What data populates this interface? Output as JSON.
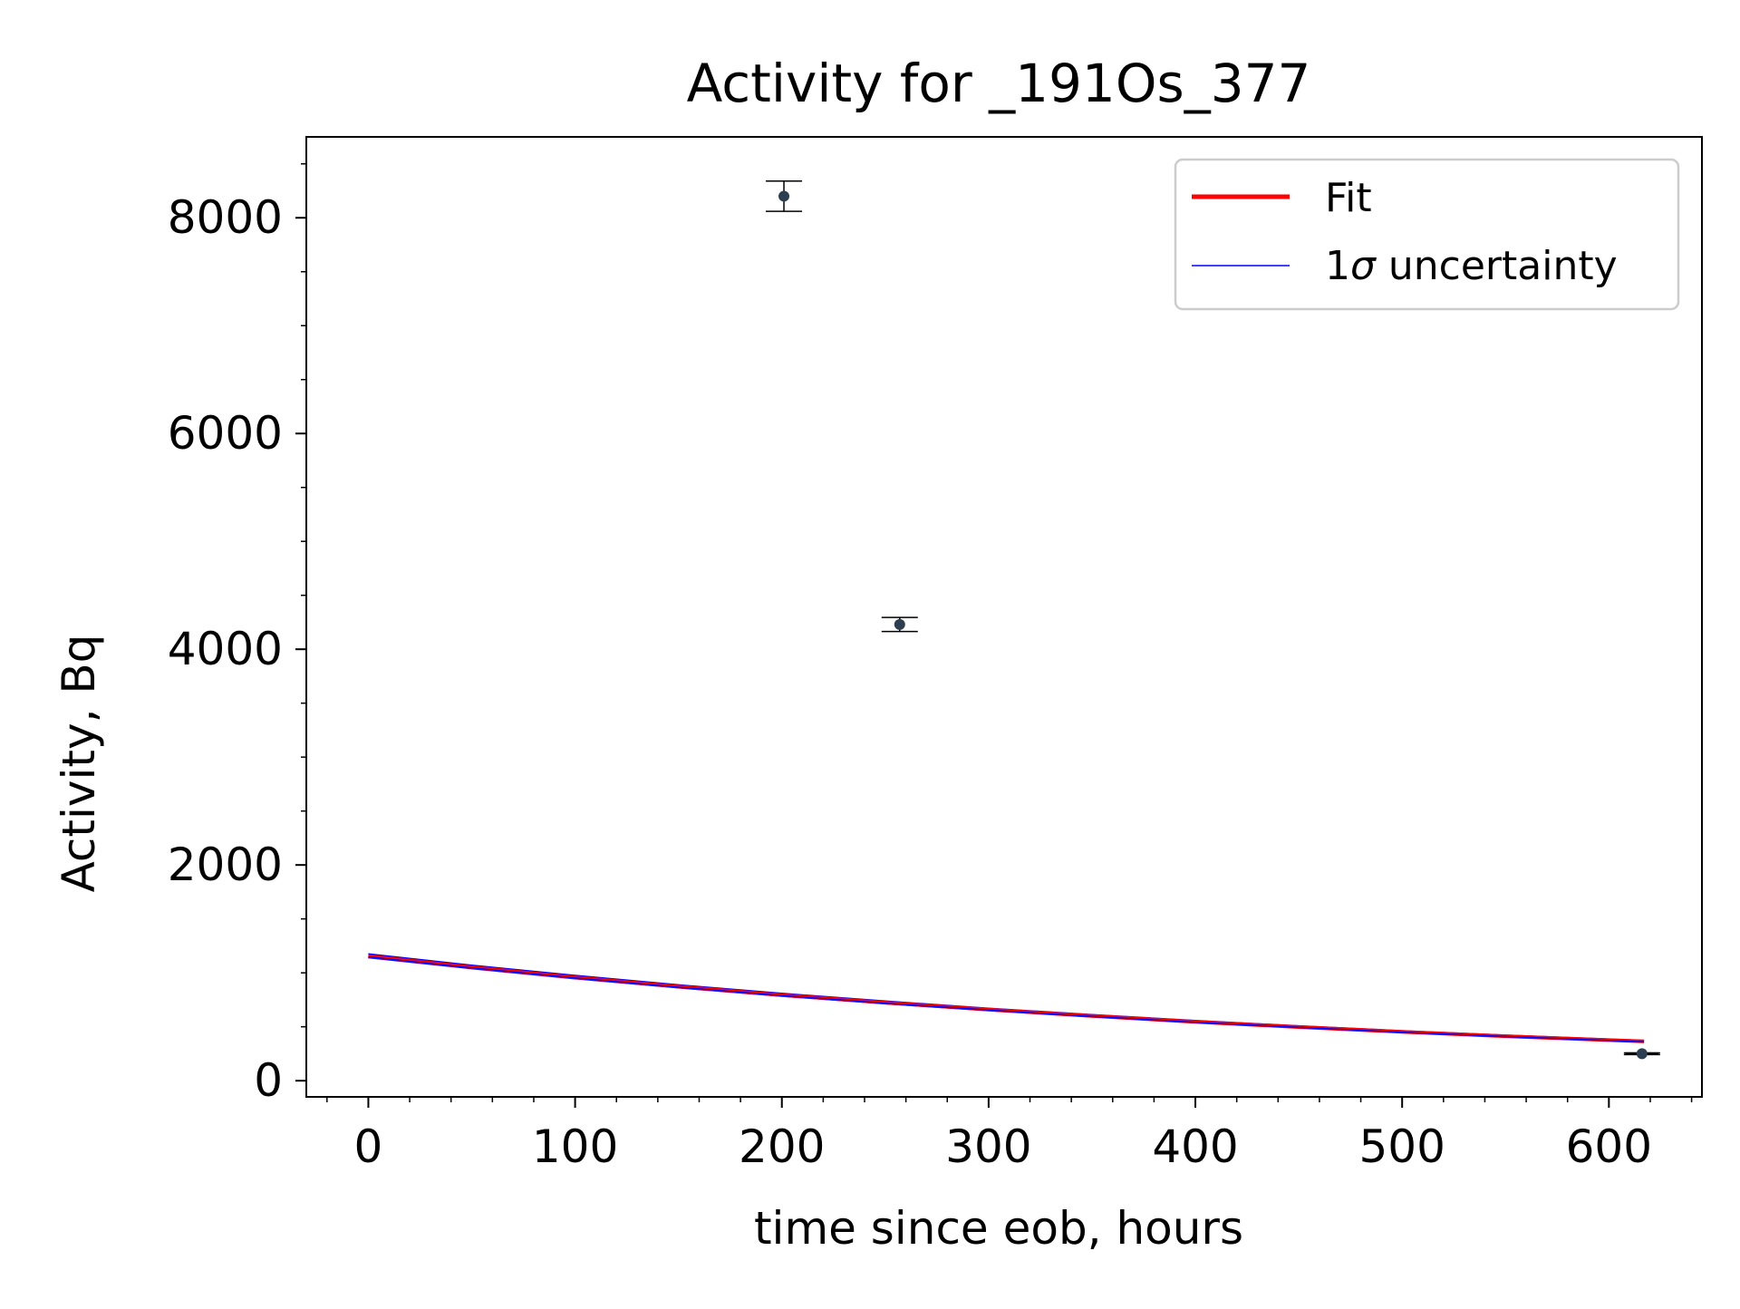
{
  "chart_data": {
    "type": "scatter",
    "title": "Activity for _191Os_377",
    "xlabel": "time since eob, hours",
    "ylabel": "Activity, Bq",
    "xlim": [
      -30,
      645
    ],
    "ylim": [
      -150,
      8750
    ],
    "xticks": [
      0,
      100,
      200,
      300,
      400,
      500,
      600
    ],
    "xtick_labels": [
      "0",
      "100",
      "200",
      "300",
      "400",
      "500",
      "600"
    ],
    "yticks": [
      0,
      2000,
      4000,
      6000,
      8000
    ],
    "ytick_labels": [
      "0",
      "2000",
      "4000",
      "6000",
      "8000"
    ],
    "x_minor_step": 20,
    "y_minor_step": 500,
    "grid": false,
    "legend_position": "upper right",
    "legend": [
      {
        "label": "Fit",
        "color": "#ff0000",
        "style": "thick-line"
      },
      {
        "label_prefix": "1",
        "label_symbol": "σ",
        "label_suffix": " uncertainty",
        "color": "#0000ff",
        "style": "thin-line"
      }
    ],
    "measurements": [
      {
        "x": 201,
        "y": 8200,
        "yerr": 140,
        "xerr": 0
      },
      {
        "x": 257,
        "y": 4230,
        "yerr": 65,
        "xerr": 0
      },
      {
        "x": 616,
        "y": 250,
        "yerr": 8,
        "xerr": 8
      }
    ],
    "fit": {
      "color": "#ff0000",
      "x": [
        0,
        50,
        100,
        150,
        200,
        250,
        300,
        350,
        400,
        450,
        500,
        550,
        600,
        617
      ],
      "y": [
        1155,
        1052,
        958,
        872,
        794,
        723,
        659,
        600,
        546,
        497,
        453,
        412,
        376,
        364
      ]
    },
    "uncertainty_band": {
      "color": "#0000ff",
      "upper": [
        1175,
        1071,
        976,
        889,
        810,
        738,
        672,
        613,
        558,
        509,
        463,
        422,
        385,
        373
      ],
      "lower": [
        1140,
        1038,
        945,
        860,
        783,
        713,
        649,
        591,
        538,
        490,
        446,
        406,
        370,
        358
      ]
    },
    "point_color": "#2c3e50"
  }
}
